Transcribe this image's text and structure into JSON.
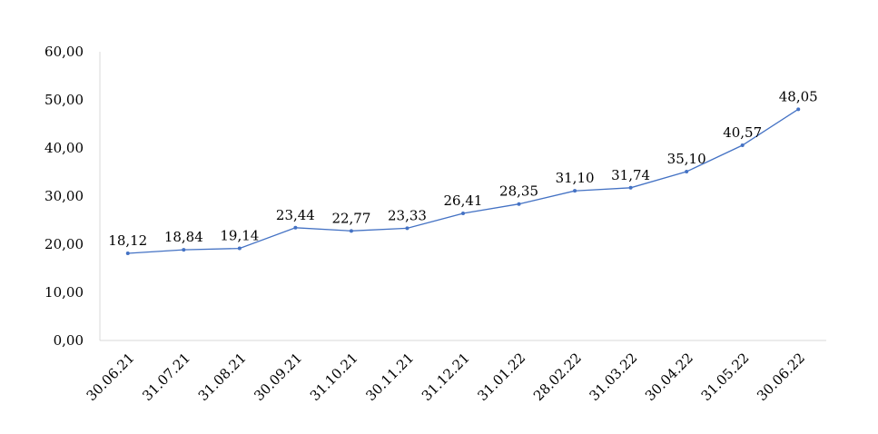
{
  "chart_data": {
    "type": "line",
    "categories": [
      "30.06.21",
      "31.07.21",
      "31.08.21",
      "30.09.21",
      "31.10.21",
      "30.11.21",
      "31.12.21",
      "31.01.22",
      "28.02.22",
      "31.03.22",
      "30.04.22",
      "31.05.22",
      "30.06.22"
    ],
    "series": [
      {
        "values": [
          18.12,
          18.84,
          19.14,
          23.44,
          22.77,
          23.33,
          26.41,
          28.35,
          31.1,
          31.74,
          35.1,
          40.57,
          48.05
        ],
        "labels": [
          "18,12",
          "18,84",
          "19,14",
          "23,44",
          "22,77",
          "23,33",
          "26,41",
          "28,35",
          "31,10",
          "31,74",
          "35,10",
          "40,57",
          "48,05"
        ]
      }
    ],
    "y_ticks": [
      0,
      10,
      20,
      30,
      40,
      50,
      60
    ],
    "y_tick_labels": [
      "0,00",
      "10,00",
      "20,00",
      "30,00",
      "40,00",
      "50,00",
      "60,00"
    ],
    "ylim": [
      0,
      60
    ],
    "grid": false,
    "legend": "none",
    "title": "",
    "xlabel": "",
    "ylabel": "",
    "colors": {
      "line": "#4472c4",
      "axis": "#d9d9d9",
      "text": "#000000"
    }
  }
}
